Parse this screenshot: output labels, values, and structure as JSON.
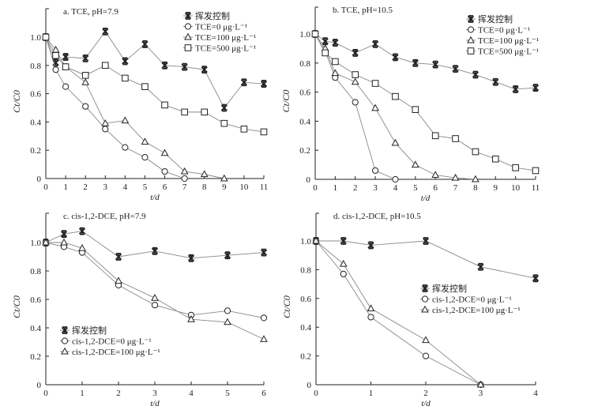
{
  "chart_data": [
    {
      "type": "line",
      "title": "a. TCE, pH=7.9",
      "xlabel": "t/d",
      "ylabel": "Ct/C0",
      "xlim": [
        0,
        11
      ],
      "ylim": [
        0,
        1.2
      ],
      "xticks": [
        0,
        1,
        2,
        3,
        4,
        5,
        6,
        7,
        8,
        9,
        10,
        11
      ],
      "yticks": [
        0,
        0.2,
        0.4,
        0.6,
        0.8,
        1.0
      ],
      "ytick_labels": [
        "0",
        "0.2",
        "0.4",
        "0.6",
        "0.8",
        "1.0"
      ],
      "legend_position": "top-right",
      "series": [
        {
          "name": "挥发控制",
          "marker": "star",
          "x": [
            0,
            0.5,
            1,
            2,
            3,
            4,
            5,
            6,
            7,
            8,
            9,
            10,
            11
          ],
          "y": [
            1.0,
            0.82,
            0.86,
            0.85,
            1.04,
            0.83,
            0.95,
            0.8,
            0.79,
            0.77,
            0.5,
            0.68,
            0.67
          ]
        },
        {
          "name": "TCE=0 μg·L⁻¹",
          "marker": "circle",
          "x": [
            0,
            0.5,
            1,
            2,
            3,
            4,
            5,
            6,
            7
          ],
          "y": [
            1.0,
            0.77,
            0.65,
            0.51,
            0.35,
            0.22,
            0.15,
            0.05,
            0.0
          ]
        },
        {
          "name": "TCE=100 μg·L⁻¹",
          "marker": "triangle",
          "x": [
            0,
            0.5,
            1,
            2,
            3,
            4,
            5,
            6,
            7,
            8,
            9
          ],
          "y": [
            1.0,
            0.91,
            0.79,
            0.68,
            0.39,
            0.41,
            0.26,
            0.18,
            0.05,
            0.03,
            0.0
          ]
        },
        {
          "name": "TCE=500 μg·L⁻¹",
          "marker": "square",
          "x": [
            0,
            0.5,
            1,
            2,
            3,
            4,
            5,
            6,
            7,
            8,
            9,
            10,
            11
          ],
          "y": [
            1.0,
            0.87,
            0.79,
            0.73,
            0.8,
            0.71,
            0.65,
            0.52,
            0.47,
            0.47,
            0.39,
            0.35,
            0.33
          ]
        }
      ]
    },
    {
      "type": "line",
      "title": "b. TCE, pH=10.5",
      "xlabel": "t/d",
      "ylabel": "Ct/C0",
      "xlim": [
        0,
        11
      ],
      "ylim": [
        0,
        1.2
      ],
      "xticks": [
        0,
        1,
        2,
        3,
        4,
        5,
        6,
        7,
        8,
        9,
        10,
        11
      ],
      "yticks": [
        0,
        0.2,
        0.4,
        0.6,
        0.8,
        1.0
      ],
      "ytick_labels": [
        "0",
        "0.2",
        "0.4",
        "0.6",
        "0.8",
        "1.0"
      ],
      "legend_position": "top-right",
      "series": [
        {
          "name": "挥发控制",
          "marker": "star",
          "x": [
            0,
            0.5,
            1,
            2,
            3,
            4,
            5,
            6,
            7,
            8,
            9,
            10,
            11
          ],
          "y": [
            1.0,
            0.95,
            0.94,
            0.87,
            0.93,
            0.84,
            0.8,
            0.79,
            0.76,
            0.72,
            0.67,
            0.62,
            0.63
          ]
        },
        {
          "name": "TCE=0 μg·L⁻¹",
          "marker": "circle",
          "x": [
            0,
            0.5,
            1,
            2,
            3,
            4
          ],
          "y": [
            1.0,
            0.88,
            0.7,
            0.53,
            0.06,
            0.0
          ]
        },
        {
          "name": "TCE=100 μg·L⁻¹",
          "marker": "triangle",
          "x": [
            0,
            0.5,
            1,
            2,
            3,
            4,
            5,
            6,
            7,
            8
          ],
          "y": [
            1.0,
            0.9,
            0.73,
            0.67,
            0.49,
            0.25,
            0.1,
            0.03,
            0.01,
            0.0
          ]
        },
        {
          "name": "TCE=500 μg·L⁻¹",
          "marker": "square",
          "x": [
            0,
            0.5,
            1,
            2,
            3,
            4,
            5,
            6,
            7,
            8,
            9,
            10,
            11
          ],
          "y": [
            1.0,
            0.87,
            0.81,
            0.72,
            0.66,
            0.57,
            0.48,
            0.3,
            0.28,
            0.19,
            0.14,
            0.08,
            0.06
          ]
        }
      ]
    },
    {
      "type": "line",
      "title": "c. cis-1,2-DCE, pH=7.9",
      "xlabel": "t/d",
      "ylabel": "Ct/C0",
      "xlim": [
        0,
        6
      ],
      "ylim": [
        0,
        1.2
      ],
      "xticks": [
        0,
        1,
        2,
        3,
        4,
        5,
        6
      ],
      "yticks": [
        0,
        0.2,
        0.4,
        0.6,
        0.8,
        1.0
      ],
      "ytick_labels": [
        "0",
        "0.2",
        "0.4",
        "0.6",
        "0.8",
        "1.0"
      ],
      "legend_position": "bottom-left",
      "series": [
        {
          "name": "挥发控制",
          "marker": "star",
          "x": [
            0,
            0.5,
            1,
            2,
            3,
            4,
            5,
            6
          ],
          "y": [
            1.0,
            1.06,
            1.08,
            0.9,
            0.94,
            0.89,
            0.91,
            0.93
          ]
        },
        {
          "name": "cis-1,2-DCE=0 μg·L⁻¹",
          "marker": "circle",
          "x": [
            0,
            0.5,
            1,
            2,
            3,
            4,
            5,
            6
          ],
          "y": [
            1.0,
            0.97,
            0.93,
            0.7,
            0.56,
            0.49,
            0.52,
            0.47
          ]
        },
        {
          "name": "cis-1,2-DCE=100 μg·L⁻¹",
          "marker": "triangle",
          "x": [
            0,
            0.5,
            1,
            2,
            3,
            4,
            5,
            6
          ],
          "y": [
            1.0,
            1.0,
            0.96,
            0.73,
            0.61,
            0.46,
            0.44,
            0.32
          ]
        }
      ]
    },
    {
      "type": "line",
      "title": "d. cis-1,2-DCE, pH=10.5",
      "xlabel": "t/d",
      "ylabel": "Ct/C0",
      "xlim": [
        0,
        4
      ],
      "ylim": [
        0,
        1.2
      ],
      "xticks": [
        0,
        1,
        2,
        3,
        4
      ],
      "yticks": [
        0,
        0.2,
        0.4,
        0.6,
        0.8,
        1.0
      ],
      "ytick_labels": [
        "0",
        "0.2",
        "0.4",
        "0.6",
        "0.8",
        "1.0"
      ],
      "legend_position": "center-right",
      "series": [
        {
          "name": "挥发控制",
          "marker": "star",
          "x": [
            0,
            0.5,
            1,
            2,
            3,
            4
          ],
          "y": [
            1.0,
            1.0,
            0.97,
            1.0,
            0.82,
            0.74
          ]
        },
        {
          "name": "cis-1,2-DCE=0 μg·L⁻¹",
          "marker": "circle",
          "x": [
            0,
            0.5,
            1,
            2,
            3
          ],
          "y": [
            1.0,
            0.77,
            0.47,
            0.2,
            0.0
          ]
        },
        {
          "name": "cis-1,2-DCE=100 μg·L⁻¹",
          "marker": "triangle",
          "x": [
            0,
            0.5,
            1,
            2,
            3
          ],
          "y": [
            1.0,
            0.84,
            0.53,
            0.31,
            0.0
          ]
        }
      ]
    }
  ],
  "colors": {
    "line": "#888888",
    "marker": "#222222",
    "axis": "#222222"
  }
}
